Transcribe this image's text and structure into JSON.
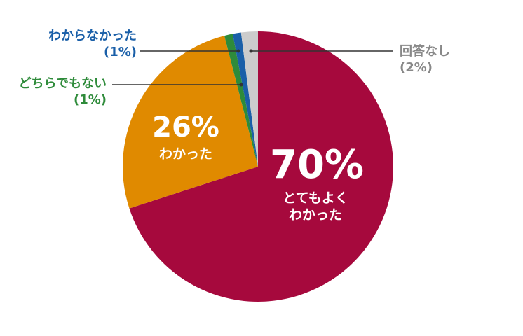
{
  "chart_data": {
    "type": "pie",
    "categories": [
      "とてもよくわかった",
      "わかった",
      "どちらでもない",
      "わからなかった",
      "回答なし"
    ],
    "values": [
      70,
      26,
      1,
      1,
      2
    ],
    "value_labels": [
      "70%",
      "26%",
      "(1%)",
      "(1%)",
      "(2%)"
    ],
    "colors": [
      "#a6093d",
      "#e08a00",
      "#2e8b3a",
      "#1a5fa8",
      "#cccccc"
    ]
  }
}
